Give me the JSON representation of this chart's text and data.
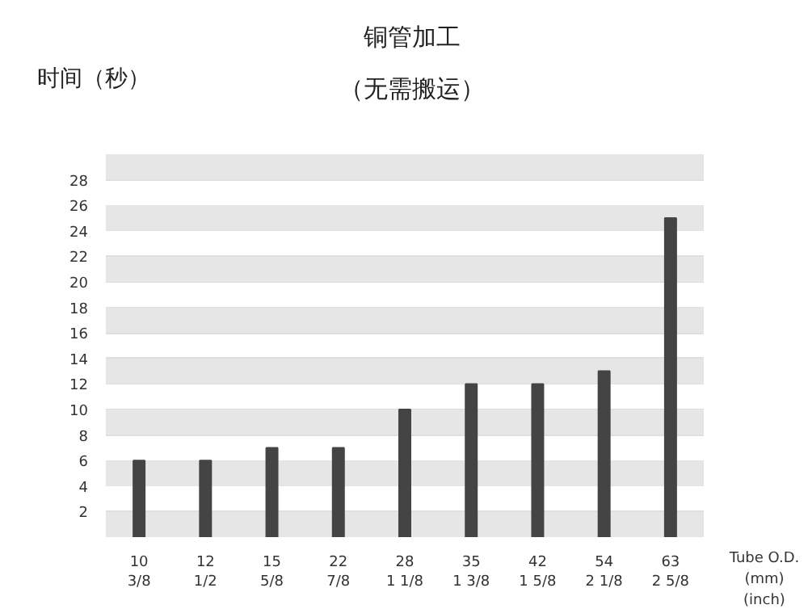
{
  "chart_data": {
    "type": "bar",
    "title": "铜管加工",
    "subtitle": "（无需搬运）",
    "ylabel": "时间（秒）",
    "xlabel": "Tube O.D.\n(mm)\n(inch)",
    "categories": [
      "10\n3/8",
      "12\n1/2",
      "15\n5/8",
      "22\n7/8",
      "28\n1 1/8",
      "35\n1 3/8",
      "42\n1 5/8",
      "54\n2 1/8",
      "63\n2 5/8"
    ],
    "values": [
      6,
      6,
      7,
      7,
      10,
      12,
      12,
      13,
      25
    ],
    "color": "#444444",
    "ylim": [
      0,
      30
    ],
    "yticks": [
      2,
      4,
      6,
      8,
      10,
      12,
      14,
      16,
      18,
      20,
      22,
      24,
      26,
      28
    ],
    "grid": "y"
  }
}
